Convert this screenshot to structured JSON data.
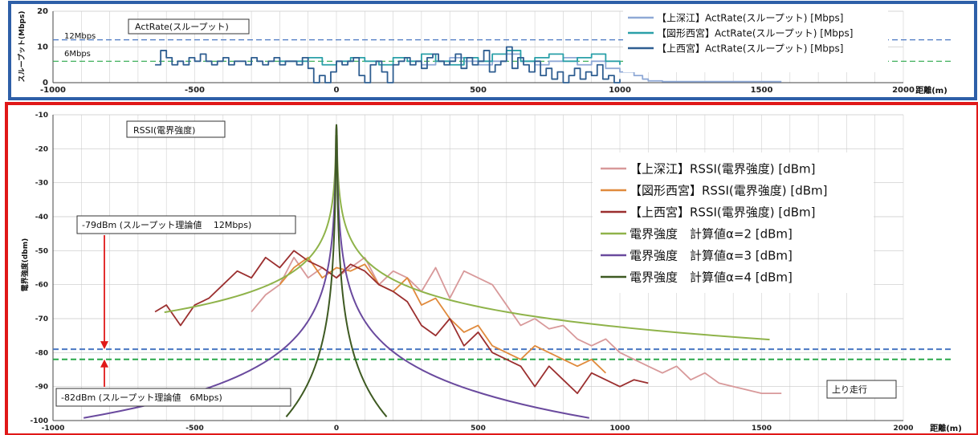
{
  "chart_data": [
    {
      "type": "line",
      "panel": "top",
      "frame_color": "#2e5fa8",
      "ylabel": "スループット(Mbps)",
      "xlabel": "距離(m)",
      "xlim": [
        -1000,
        2000
      ],
      "ylim": [
        0,
        20
      ],
      "x_ticks": [
        "-1000",
        "-500",
        "0",
        "500",
        "1000",
        "1500",
        "2000"
      ],
      "y_ticks": [
        "0",
        "10",
        "20"
      ],
      "grid": true,
      "title_box": "ActRate(スループット)",
      "annotations": [
        {
          "text": "12Mbps",
          "y": 12,
          "color": "#4a78c2"
        },
        {
          "text": "6Mbps",
          "y": 6,
          "color": "#2aa84a"
        }
      ],
      "legend_position": "top-right",
      "series": [
        {
          "name": "【上深江】ActRate(スループット) [Mbps]",
          "color": "#8fa9d6",
          "x": [
            300,
            350,
            400,
            450,
            500,
            550,
            600,
            650,
            700,
            750,
            800,
            850,
            900,
            950,
            1000,
            1050,
            1080,
            1100,
            1150,
            1200,
            1300,
            1400,
            1500,
            1570
          ],
          "y": [
            5,
            6,
            7,
            6,
            5,
            6,
            8,
            6,
            5,
            6,
            7,
            5,
            6,
            4,
            3,
            2,
            1,
            0.5,
            0.3,
            0.3,
            0.3,
            0.3,
            0.3,
            0.3
          ]
        },
        {
          "name": "【図形西宮】ActRate(スループット) [Mbps]",
          "color": "#2aa0a8",
          "x": [
            -200,
            -150,
            -100,
            -50,
            0,
            50,
            100,
            150,
            200,
            250,
            300,
            350,
            400,
            450,
            500,
            550,
            600,
            650,
            700,
            750,
            800,
            850,
            900,
            950,
            1000
          ],
          "y": [
            6,
            6,
            7,
            5,
            6,
            7,
            6,
            5,
            7,
            6,
            8,
            6,
            5,
            7,
            6,
            8,
            9,
            6,
            7,
            8,
            6,
            7,
            8,
            6,
            5
          ]
        },
        {
          "name": "【上西宮】ActRate(スループット) [Mbps]",
          "color": "#2f5e91",
          "x": [
            -640,
            -620,
            -600,
            -580,
            -560,
            -540,
            -520,
            -500,
            -480,
            -460,
            -440,
            -420,
            -400,
            -380,
            -360,
            -340,
            -320,
            -300,
            -280,
            -260,
            -240,
            -220,
            -200,
            -180,
            -160,
            -140,
            -120,
            -100,
            -80,
            -60,
            -40,
            -20,
            0,
            20,
            40,
            60,
            80,
            100,
            120,
            140,
            160,
            180,
            200,
            220,
            240,
            260,
            280,
            300,
            320,
            340,
            360,
            380,
            400,
            420,
            440,
            460,
            480,
            500,
            520,
            540,
            560,
            580,
            600,
            620,
            640,
            660,
            680,
            700,
            720,
            740,
            760,
            780,
            800,
            820,
            840,
            860,
            880,
            900,
            920,
            940,
            960,
            980,
            1000
          ],
          "y": [
            5,
            9,
            7,
            5,
            6,
            5,
            7,
            6,
            8,
            6,
            5,
            6,
            7,
            5,
            6,
            6,
            5,
            7,
            6,
            5,
            6,
            7,
            5,
            6,
            6,
            5,
            7,
            4,
            0,
            2,
            0,
            3,
            6,
            5,
            6,
            7,
            2,
            0,
            5,
            6,
            3,
            0,
            5,
            6,
            7,
            5,
            6,
            4,
            7,
            8,
            6,
            5,
            6,
            8,
            4,
            7,
            5,
            6,
            9,
            3,
            5,
            6,
            10,
            4,
            7,
            5,
            3,
            6,
            2,
            4,
            1,
            3,
            0,
            2,
            4,
            1,
            3,
            2,
            5,
            1,
            2,
            0,
            1
          ]
        }
      ]
    },
    {
      "type": "line",
      "panel": "bottom",
      "frame_color": "#e01818",
      "ylabel": "電界強度(dbm)",
      "xlabel": "距離(m)",
      "xlim": [
        -1000,
        2000
      ],
      "ylim": [
        -100,
        -10
      ],
      "x_ticks": [
        "-1000",
        "-500",
        "0",
        "500",
        "1000",
        "1500",
        "2000"
      ],
      "y_ticks": [
        "-10",
        "-20",
        "-30",
        "-40",
        "-50",
        "-60",
        "-70",
        "-80",
        "-90",
        "-100"
      ],
      "grid": true,
      "title_box": "RSSI(電界強度)",
      "legend_position": "top-right",
      "annotations": [
        {
          "text": "-79dBm (スループット理論値　 12Mbps)",
          "y": -79,
          "color": "#4a78c2"
        },
        {
          "text": "-82dBm (スループット理論値　6Mbps)",
          "y": -82,
          "color": "#2aa84a"
        },
        {
          "text": "上り走行"
        }
      ],
      "series": [
        {
          "name": "【上深江】RSSI(電界強度) [dBm]",
          "color": "#d8999a",
          "x": [
            -300,
            -250,
            -200,
            -150,
            -100,
            -50,
            0,
            50,
            100,
            150,
            200,
            250,
            300,
            350,
            400,
            450,
            500,
            550,
            600,
            650,
            700,
            750,
            800,
            850,
            900,
            950,
            1000,
            1050,
            1100,
            1150,
            1200,
            1250,
            1300,
            1350,
            1400,
            1450,
            1500,
            1570
          ],
          "y": [
            -68,
            -63,
            -60,
            -52,
            -58,
            -55,
            -58,
            -55,
            -52,
            -60,
            -56,
            -58,
            -62,
            -55,
            -64,
            -56,
            -58,
            -60,
            -66,
            -72,
            -70,
            -73,
            -72,
            -76,
            -78,
            -76,
            -80,
            -82,
            -84,
            -86,
            -84,
            -88,
            -86,
            -89,
            -90,
            -91,
            -92,
            -92
          ]
        },
        {
          "name": "【図形西宮】RSSI(電界強度) [dBm]",
          "color": "#e08a3c",
          "x": [
            -200,
            -150,
            -100,
            -50,
            0,
            50,
            100,
            150,
            200,
            250,
            300,
            350,
            400,
            450,
            500,
            550,
            600,
            650,
            700,
            750,
            800,
            850,
            900,
            950
          ],
          "y": [
            -60,
            -55,
            -52,
            -58,
            -55,
            -56,
            -54,
            -60,
            -62,
            -58,
            -66,
            -64,
            -70,
            -74,
            -72,
            -78,
            -80,
            -82,
            -78,
            -80,
            -82,
            -84,
            -82,
            -86
          ]
        },
        {
          "name": "【上西宮】RSSI(電界強度) [dBm]",
          "color": "#9b2f2f",
          "x": [
            -640,
            -600,
            -550,
            -500,
            -450,
            -400,
            -350,
            -300,
            -250,
            -200,
            -150,
            -100,
            -50,
            0,
            50,
            100,
            150,
            200,
            250,
            300,
            350,
            400,
            450,
            500,
            550,
            600,
            650,
            700,
            750,
            800,
            850,
            900,
            950,
            1000,
            1050,
            1100
          ],
          "y": [
            -68,
            -66,
            -72,
            -66,
            -64,
            -60,
            -56,
            -58,
            -52,
            -55,
            -50,
            -53,
            -55,
            -58,
            -54,
            -56,
            -60,
            -62,
            -65,
            -72,
            -75,
            -70,
            -78,
            -74,
            -80,
            -82,
            -84,
            -90,
            -84,
            -88,
            -92,
            -86,
            -88,
            -90,
            -88,
            -89
          ]
        },
        {
          "name": "電界強度　計算値α=2 [dBm]",
          "color": "#8fb34a",
          "formula_alpha": 2
        },
        {
          "name": "電界強度　計算値α=3 [dBm]",
          "color": "#6a4a9e",
          "formula_alpha": 3
        },
        {
          "name": "電界強度　計算値α=4 [dBm]",
          "color": "#3e5a22",
          "formula_alpha": 4
        }
      ]
    }
  ]
}
